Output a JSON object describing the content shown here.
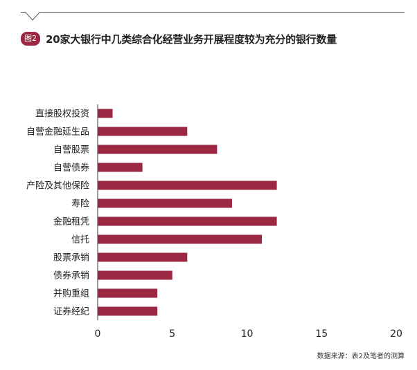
{
  "figure": {
    "badge": "图2",
    "title": "20家大银行中几类综合化经营业务开展程度较为充分的银行数量",
    "source": "数据来源：表2及笔者的测算"
  },
  "colors": {
    "bar": "#9b2742",
    "badge": "#9b2742",
    "axis": "#333333",
    "text": "#222222"
  },
  "chart_data": {
    "type": "bar",
    "orientation": "horizontal",
    "categories": [
      "直接股权投资",
      "自营金融延生品",
      "自营股票",
      "自营债券",
      "产险及其他保险",
      "寿险",
      "金融租凭",
      "信托",
      "股票承销",
      "债券承销",
      "并购重组",
      "证券经纪"
    ],
    "values": [
      1,
      6,
      8,
      3,
      12,
      9,
      12,
      11,
      6,
      5,
      4,
      4
    ],
    "xlim": [
      0,
      20
    ],
    "xticks": [
      0,
      5,
      10,
      15,
      20
    ],
    "grid": false
  }
}
